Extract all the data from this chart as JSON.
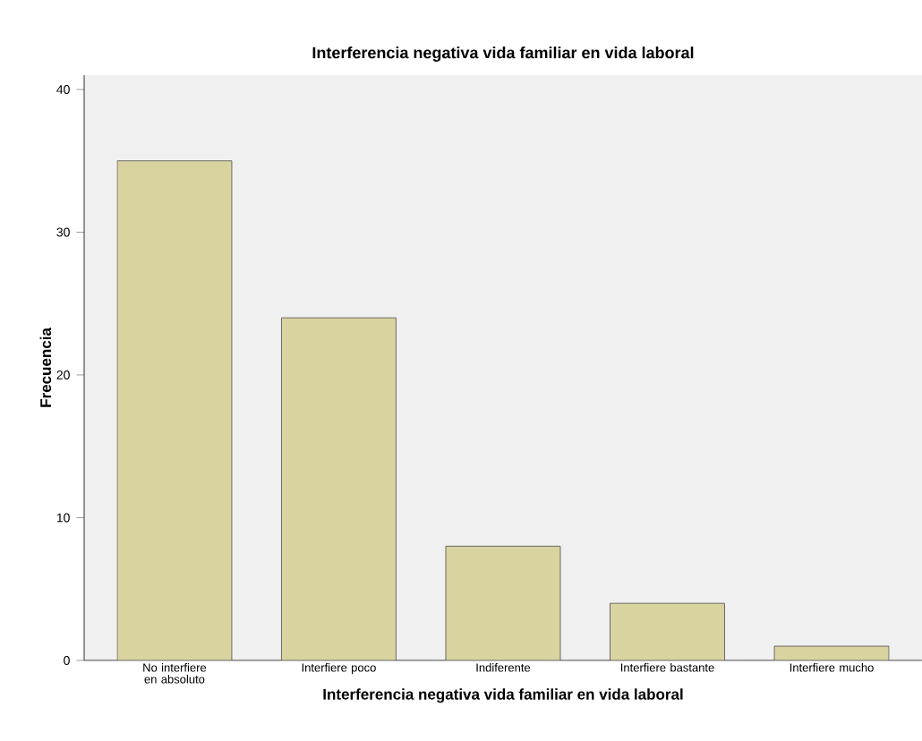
{
  "chart_data": {
    "type": "bar",
    "title": "Interferencia negativa vida familiar en vida laboral",
    "xlabel": "Interferencia negativa vida familiar en vida laboral",
    "ylabel": "Frecuencia",
    "categories": [
      "No interfiere en absoluto",
      "Interfiere poco",
      "Indiferente",
      "Interfiere bastante",
      "Interfiere mucho"
    ],
    "values": [
      35,
      24,
      8,
      4,
      1
    ],
    "color": "#d9d3a0",
    "ylim": [
      0,
      41
    ],
    "yticks": [
      0,
      10,
      20,
      30,
      40
    ],
    "grid": false
  }
}
